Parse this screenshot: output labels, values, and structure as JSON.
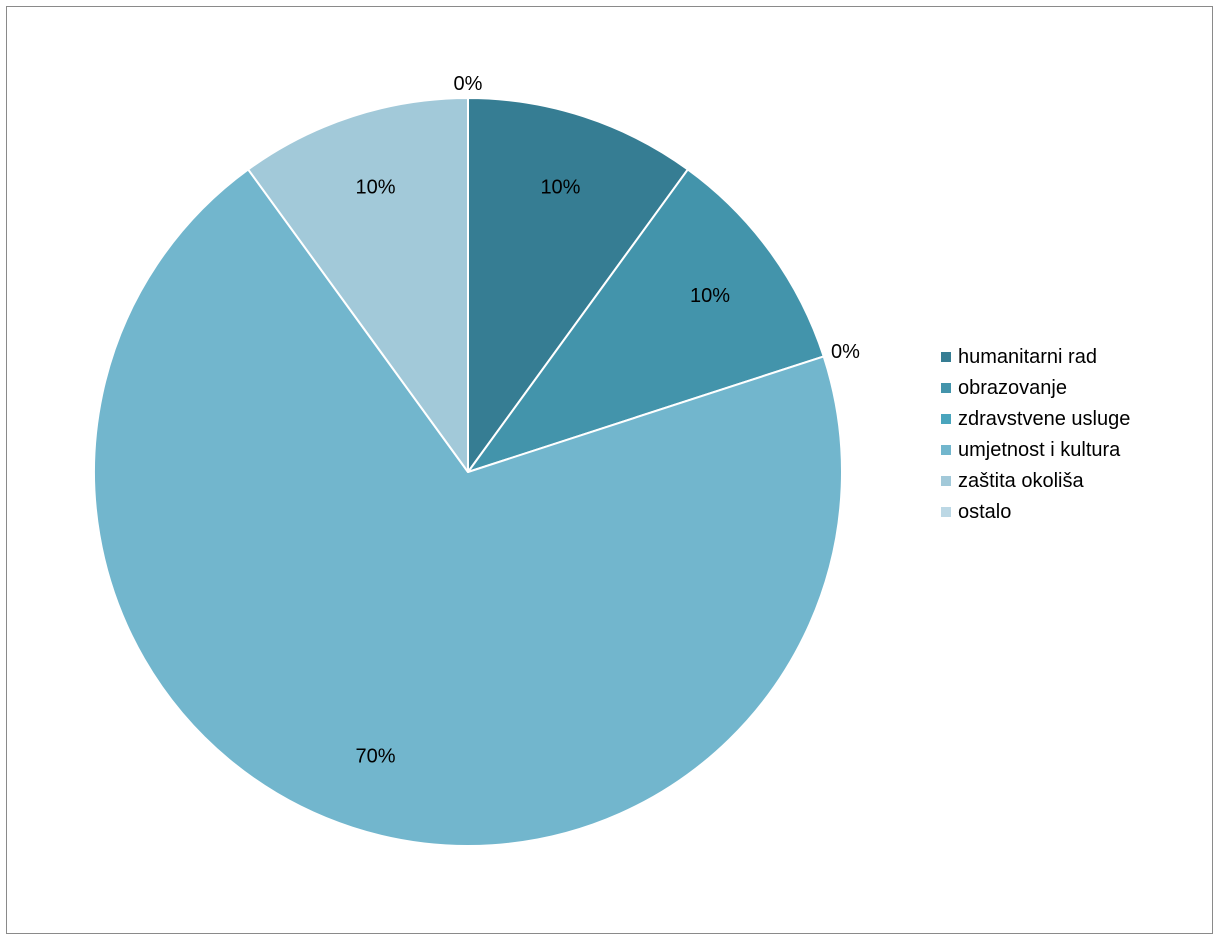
{
  "chart_data": {
    "type": "pie",
    "categories": [
      "humanitarni rad",
      "obrazovanje",
      "zdravstvene usluge",
      "umjetnost i kultura",
      "zaštita okoliša",
      "ostalo"
    ],
    "values": [
      10,
      10,
      0,
      70,
      10,
      0
    ],
    "data_labels": [
      "10%",
      "10%",
      "0%",
      "70%",
      "10%",
      "0%"
    ],
    "colors": [
      "#367d93",
      "#4394ab",
      "#4aa5bd",
      "#72b6cd",
      "#a2c9d9",
      "#bcd8e5"
    ],
    "title": "",
    "legend_position": "right",
    "start_angle": "12 o'clock",
    "direction": "clockwise"
  }
}
